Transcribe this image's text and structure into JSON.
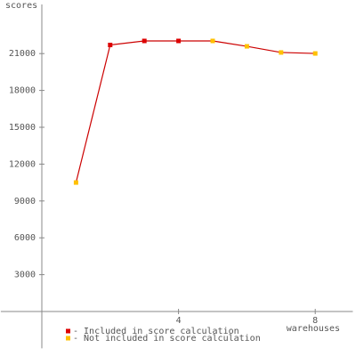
{
  "chart_data": {
    "type": "line",
    "y_label": "scores",
    "x_label": "warehouses",
    "x": [
      1,
      2,
      3,
      4,
      5,
      6,
      7,
      8
    ],
    "xlim": [
      -1.2,
      9.1
    ],
    "xticks": [
      4,
      8
    ],
    "ylim": [
      -3000,
      25000
    ],
    "yticks": [
      3000,
      6000,
      9000,
      12000,
      15000,
      18000,
      21000
    ],
    "line_color": "#cc0000",
    "series": [
      {
        "name": "- Included in score calculation",
        "color": "#dd0000",
        "values": [
          null,
          21700,
          22030,
          22030,
          null,
          null,
          null,
          null
        ]
      },
      {
        "name": "- Not included in score calculation",
        "color": "#ffc000",
        "values": [
          10500,
          null,
          null,
          null,
          22030,
          21590,
          21090,
          21010
        ]
      }
    ]
  }
}
